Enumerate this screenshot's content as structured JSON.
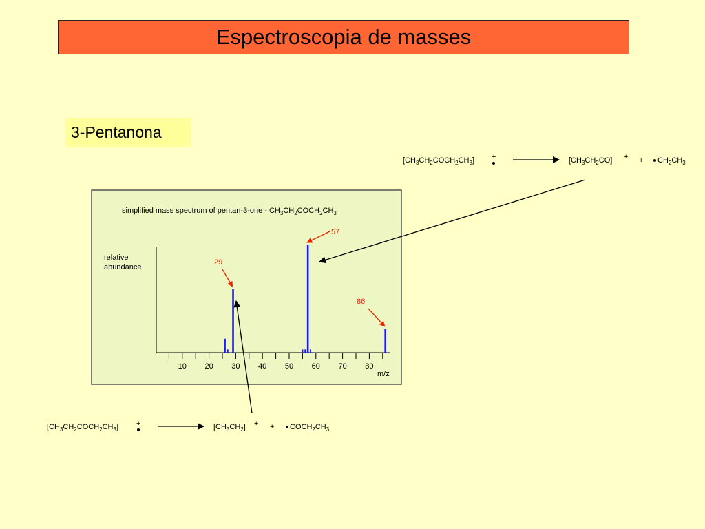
{
  "slide": {
    "title": "Espectroscopia de masses",
    "subtitle": "3-Pentanona"
  },
  "reactions": {
    "top": {
      "reactant": "[CH3CH2COCH2CH3]",
      "product": "[CH3CH2CO]",
      "plus": "+",
      "radical": "CH2CH3"
    },
    "bottom": {
      "reactant": "[CH3CH2COCH2CH3]",
      "product": "[CH3CH2]",
      "plus": "+",
      "radical": "COCH2CH3"
    }
  },
  "chart_data": {
    "type": "bar",
    "title": "simplified mass spectrum of pentan-3-one  -  CH3CH2COCH2CH3",
    "xlabel": "m/z",
    "ylabel": "relative abundance",
    "xlim": [
      3,
      89
    ],
    "ylim": [
      0,
      100
    ],
    "x_ticks": [
      10,
      20,
      30,
      40,
      50,
      60,
      70,
      80
    ],
    "peaks": [
      {
        "mz": 26,
        "value": 13
      },
      {
        "mz": 27,
        "value": 3
      },
      {
        "mz": 29,
        "value": 59
      },
      {
        "mz": 55,
        "value": 3
      },
      {
        "mz": 56,
        "value": 3
      },
      {
        "mz": 57,
        "value": 100
      },
      {
        "mz": 58,
        "value": 3
      },
      {
        "mz": 86,
        "value": 22
      }
    ],
    "annotations": [
      {
        "mz": 29,
        "label": "29"
      },
      {
        "mz": 57,
        "label": "57"
      },
      {
        "mz": 86,
        "label": "86"
      }
    ],
    "colors": {
      "bars": "#1a1aff",
      "annotations": "#ee2200",
      "panel": "#eef6c4"
    }
  }
}
